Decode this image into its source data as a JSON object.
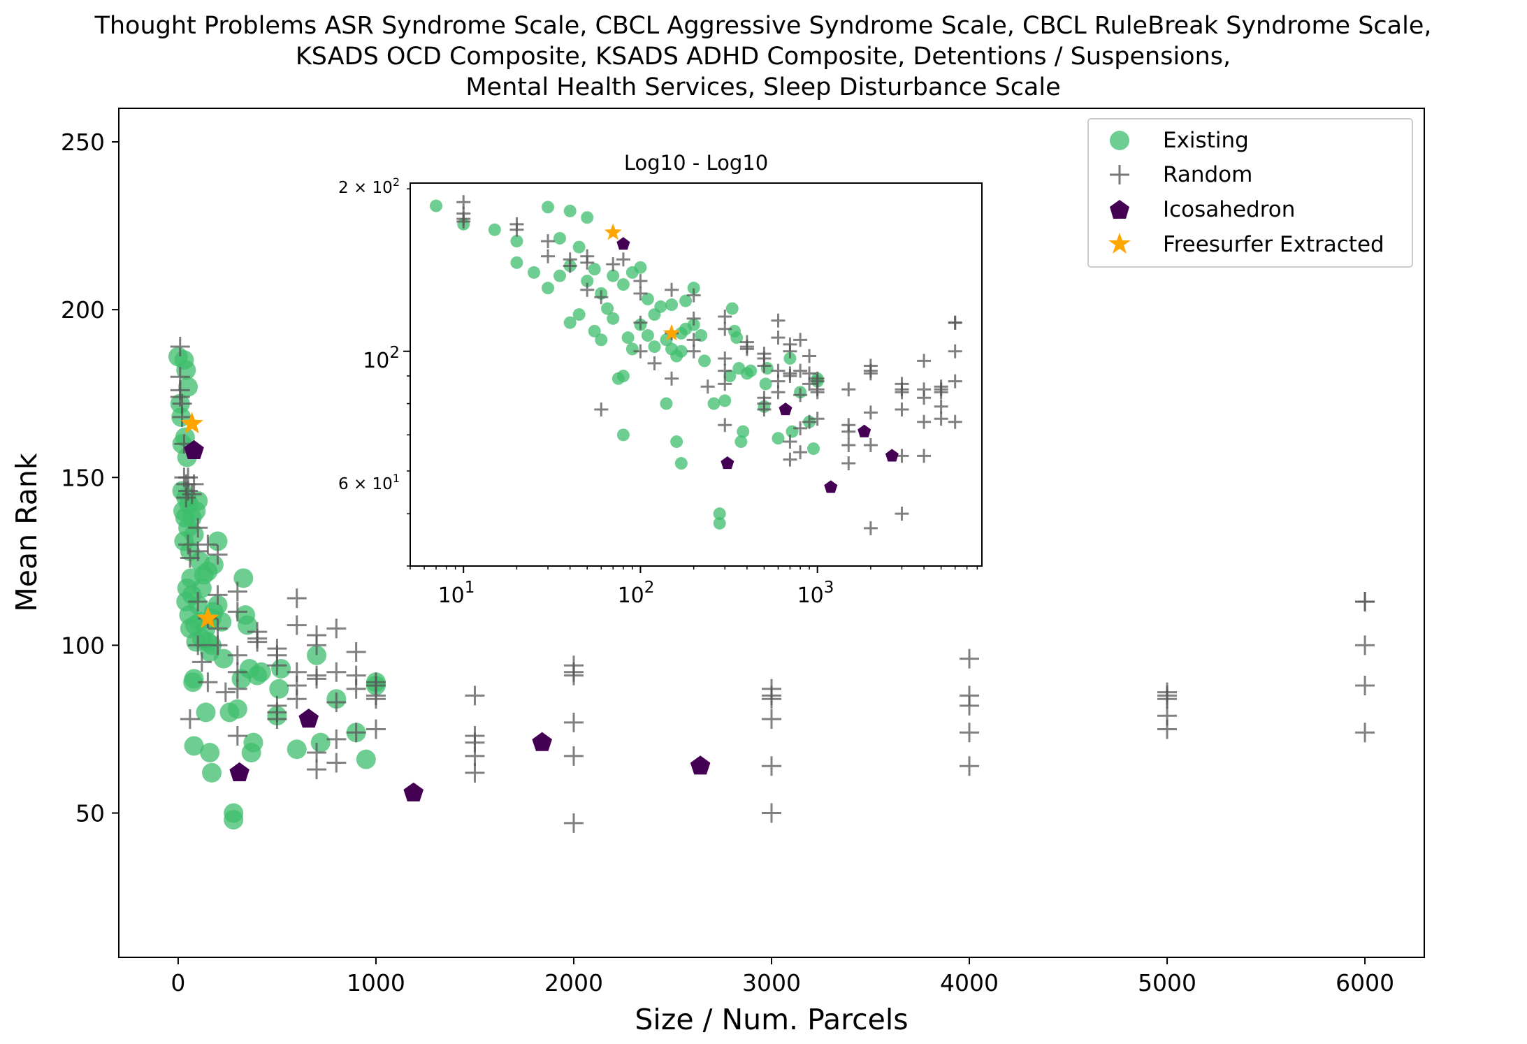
{
  "chart_data": [
    {
      "type": "scatter",
      "title": "Thought Problems ASR Syndrome Scale, CBCL Aggressive Syndrome Scale, CBCL RuleBreak Syndrome Scale, KSADS OCD Composite, KSADS ADHD Composite, Detentions / Suspensions, Mental Health Services, Sleep Disturbance Scale",
      "title_lines": [
        "Thought Problems ASR Syndrome Scale, CBCL Aggressive Syndrome Scale, CBCL RuleBreak Syndrome Scale,",
        "KSADS OCD Composite, KSADS ADHD Composite, Detentions / Suspensions,",
        "Mental Health Services, Sleep Disturbance Scale"
      ],
      "xlabel": "Size / Num. Parcels",
      "ylabel": "Mean Rank",
      "xlim": [
        -300,
        6300
      ],
      "ylim": [
        7,
        260
      ],
      "x_ticks": [
        0,
        1000,
        2000,
        3000,
        4000,
        5000,
        6000
      ],
      "x_tick_labels": [
        "0",
        "1000",
        "2000",
        "3000",
        "4000",
        "5000",
        "6000"
      ],
      "y_ticks": [
        50,
        100,
        150,
        200,
        250
      ],
      "y_tick_labels": [
        "50",
        "100",
        "150",
        "200",
        "250"
      ],
      "grid": false,
      "legend_position": "top-right",
      "legend": [
        "Existing",
        "Random",
        "Icosahedron",
        "Freesurfer Extracted"
      ],
      "colors": {
        "existing": "#3dbd6c",
        "random": "#555555",
        "icosahedron": "#440154",
        "freesurfer": "#ffa500"
      },
      "series": [
        {
          "name": "Existing",
          "marker": "circle",
          "points": [
            [
              0,
              186
            ],
            [
              10,
              172
            ],
            [
              15,
              168
            ],
            [
              20,
              160
            ],
            [
              30,
              185
            ],
            [
              40,
              182
            ],
            [
              50,
              177
            ],
            [
              35,
              162
            ],
            [
              45,
              156
            ],
            [
              20,
              146
            ],
            [
              25,
              140
            ],
            [
              30,
              131
            ],
            [
              35,
              138
            ],
            [
              40,
              144
            ],
            [
              50,
              135
            ],
            [
              55,
              142
            ],
            [
              60,
              128
            ],
            [
              70,
              138
            ],
            [
              80,
              133
            ],
            [
              90,
              140
            ],
            [
              100,
              143
            ],
            [
              110,
              125
            ],
            [
              120,
              117
            ],
            [
              130,
              121
            ],
            [
              150,
              122
            ],
            [
              170,
              108
            ],
            [
              180,
              124
            ],
            [
              200,
              131
            ],
            [
              40,
              113
            ],
            [
              45,
              117
            ],
            [
              55,
              109
            ],
            [
              60,
              105
            ],
            [
              65,
              120
            ],
            [
              70,
              115
            ],
            [
              75,
              89
            ],
            [
              80,
              90
            ],
            [
              85,
              106
            ],
            [
              90,
              101
            ],
            [
              100,
              112
            ],
            [
              110,
              107
            ],
            [
              120,
              102
            ],
            [
              140,
              105
            ],
            [
              150,
              101
            ],
            [
              160,
              98
            ],
            [
              170,
              100
            ],
            [
              180,
              110
            ],
            [
              200,
              112
            ],
            [
              220,
              107
            ],
            [
              230,
              96
            ],
            [
              260,
              80
            ],
            [
              280,
              50
            ],
            [
              280,
              48
            ],
            [
              300,
              81
            ],
            [
              320,
              90
            ],
            [
              330,
              120
            ],
            [
              340,
              109
            ],
            [
              350,
              106
            ],
            [
              360,
              93
            ],
            [
              370,
              68
            ],
            [
              380,
              71
            ],
            [
              400,
              91
            ],
            [
              420,
              92
            ],
            [
              500,
              79
            ],
            [
              510,
              87
            ],
            [
              520,
              93
            ],
            [
              600,
              69
            ],
            [
              700,
              97
            ],
            [
              720,
              71
            ],
            [
              800,
              84
            ],
            [
              900,
              74
            ],
            [
              950,
              66
            ],
            [
              1000,
              89
            ],
            [
              1000,
              88
            ],
            [
              80,
              70
            ],
            [
              160,
              68
            ],
            [
              170,
              62
            ],
            [
              140,
              80
            ]
          ]
        },
        {
          "name": "Random",
          "marker": "plus",
          "points": [
            [
              10,
              189
            ],
            [
              10,
              180
            ],
            [
              10,
              176
            ],
            [
              10,
              174
            ],
            [
              20,
              172
            ],
            [
              20,
              168
            ],
            [
              30,
              160
            ],
            [
              30,
              150
            ],
            [
              40,
              148
            ],
            [
              40,
              144
            ],
            [
              50,
              150
            ],
            [
              50,
              146
            ],
            [
              50,
              130
            ],
            [
              60,
              126
            ],
            [
              70,
              145
            ],
            [
              80,
              148
            ],
            [
              100,
              135
            ],
            [
              100,
              128
            ],
            [
              100,
              113
            ],
            [
              150,
              130
            ],
            [
              150,
              108
            ],
            [
              200,
              127
            ],
            [
              200,
              115
            ],
            [
              200,
              105
            ],
            [
              200,
              100
            ],
            [
              300,
              116
            ],
            [
              300,
              110
            ],
            [
              300,
              97
            ],
            [
              300,
              92
            ],
            [
              300,
              87
            ],
            [
              300,
              73
            ],
            [
              400,
              104
            ],
            [
              400,
              102
            ],
            [
              400,
              101
            ],
            [
              500,
              99
            ],
            [
              500,
              97
            ],
            [
              500,
              94
            ],
            [
              500,
              82
            ],
            [
              500,
              80
            ],
            [
              500,
              78
            ],
            [
              600,
              114
            ],
            [
              600,
              106
            ],
            [
              600,
              92
            ],
            [
              600,
              88
            ],
            [
              600,
              84
            ],
            [
              700,
              103
            ],
            [
              700,
              100
            ],
            [
              700,
              91
            ],
            [
              700,
              90
            ],
            [
              700,
              68
            ],
            [
              700,
              63
            ],
            [
              800,
              105
            ],
            [
              800,
              92
            ],
            [
              800,
              83
            ],
            [
              800,
              72
            ],
            [
              800,
              65
            ],
            [
              900,
              98
            ],
            [
              900,
              91
            ],
            [
              900,
              87
            ],
            [
              900,
              74
            ],
            [
              1000,
              89
            ],
            [
              1000,
              88
            ],
            [
              1000,
              85
            ],
            [
              1000,
              84
            ],
            [
              1000,
              75
            ],
            [
              1500,
              85
            ],
            [
              1500,
              73
            ],
            [
              1500,
              71
            ],
            [
              1500,
              67
            ],
            [
              1500,
              62
            ],
            [
              2000,
              94
            ],
            [
              2000,
              92
            ],
            [
              2000,
              91
            ],
            [
              2000,
              77
            ],
            [
              2000,
              67
            ],
            [
              2000,
              47
            ],
            [
              3000,
              87
            ],
            [
              3000,
              85
            ],
            [
              3000,
              84
            ],
            [
              3000,
              78
            ],
            [
              3000,
              64
            ],
            [
              3000,
              50
            ],
            [
              4000,
              96
            ],
            [
              4000,
              85
            ],
            [
              4000,
              82
            ],
            [
              4000,
              74
            ],
            [
              4000,
              64
            ],
            [
              5000,
              86
            ],
            [
              5000,
              85
            ],
            [
              5000,
              84
            ],
            [
              5000,
              79
            ],
            [
              5000,
              75
            ],
            [
              6000,
              113
            ],
            [
              6000,
              113
            ],
            [
              6000,
              100
            ],
            [
              6000,
              88
            ],
            [
              6000,
              74
            ],
            [
              60,
              78
            ],
            [
              120,
              95
            ],
            [
              150,
              89
            ],
            [
              240,
              86
            ],
            [
              100,
              100
            ]
          ]
        },
        {
          "name": "Icosahedron",
          "marker": "pentagon",
          "points": [
            [
              80,
              158
            ],
            [
              310,
              62
            ],
            [
              660,
              78
            ],
            [
              1190,
              56
            ],
            [
              1840,
              71
            ],
            [
              2640,
              64
            ]
          ]
        },
        {
          "name": "Freesurfer Extracted",
          "marker": "star",
          "points": [
            [
              70,
              166
            ],
            [
              150,
              108
            ]
          ]
        }
      ]
    },
    {
      "type": "scatter",
      "title": "Log10 - Log10",
      "x_scale": "log",
      "y_scale": "log",
      "xlim": [
        5,
        8500
      ],
      "ylim": [
        40,
        205
      ],
      "x_tick_labels": [
        "10",
        "1",
        "10",
        "2",
        "10",
        "3"
      ],
      "y_tick_labels": [
        "2 × 10",
        "2",
        "10",
        "2",
        "6 × 10",
        "1"
      ],
      "grid": false,
      "note": "inset shows the same series on log-log axes"
    }
  ]
}
